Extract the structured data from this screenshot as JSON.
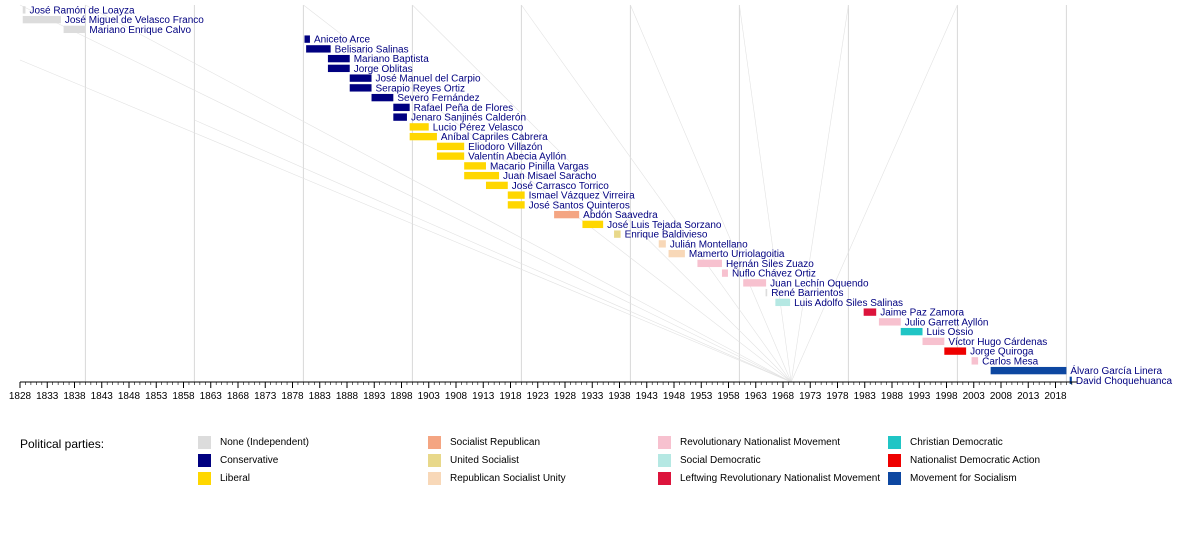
{
  "chart_data": {
    "type": "timeline",
    "x_range": [
      1828,
      2022
    ],
    "x_ticks": [
      1828,
      1833,
      1838,
      1843,
      1848,
      1853,
      1858,
      1863,
      1868,
      1873,
      1878,
      1883,
      1888,
      1893,
      1898,
      1903,
      1908,
      1913,
      1918,
      1923,
      1928,
      1933,
      1938,
      1943,
      1948,
      1953,
      1958,
      1963,
      1968,
      1973,
      1978,
      1983,
      1988,
      1993,
      1998,
      2003,
      2008,
      2013,
      2018
    ],
    "grid_years": [
      1840,
      1860,
      1880,
      1900,
      1920,
      1940,
      1960,
      1980,
      2000,
      2020
    ],
    "grid": true,
    "legend_title": "Political parties:",
    "parties": [
      {
        "key": "none",
        "name": "None (Independent)",
        "color": "#dcdcdc"
      },
      {
        "key": "conservative",
        "name": "Conservative",
        "color": "#000080"
      },
      {
        "key": "liberal",
        "name": "Liberal",
        "color": "#ffd700"
      },
      {
        "key": "socialist_republican",
        "name": "Socialist Republican",
        "color": "#f4a582"
      },
      {
        "key": "united_socialist",
        "name": "United Socialist",
        "color": "#e8d88a"
      },
      {
        "key": "republican_socialist_unity",
        "name": "Republican Socialist Unity",
        "color": "#f8d8b8"
      },
      {
        "key": "mnr",
        "name": "Revolutionary Nationalist Movement",
        "color": "#f7c1cf"
      },
      {
        "key": "social_democratic",
        "name": "Social Democratic",
        "color": "#b5e8e3"
      },
      {
        "key": "left_mnr",
        "name": "Leftwing Revolutionary Nationalist Movement",
        "color": "#dc143c"
      },
      {
        "key": "christian_democratic",
        "name": "Christian Democratic",
        "color": "#20c5c5"
      },
      {
        "key": "adn",
        "name": "Nationalist Democratic Action",
        "color": "#ee0000"
      },
      {
        "key": "mas",
        "name": "Movement for Socialism",
        "color": "#0d47a1"
      }
    ],
    "entries": [
      {
        "name": "José Ramón de Loayza",
        "start": 1828.5,
        "end": 1829.0,
        "party": "none"
      },
      {
        "name": "José Miguel de Velasco Franco",
        "start": 1828.5,
        "end": 1835.5,
        "party": "none"
      },
      {
        "name": "Mariano Enrique Calvo",
        "start": 1836.0,
        "end": 1840.0,
        "party": "none"
      },
      {
        "name": "Aniceto Arce",
        "start": 1880.2,
        "end": 1881.2,
        "party": "conservative"
      },
      {
        "name": "Belisario Salinas",
        "start": 1880.5,
        "end": 1885.0,
        "party": "conservative"
      },
      {
        "name": "Mariano Baptista",
        "start": 1884.5,
        "end": 1888.5,
        "party": "conservative"
      },
      {
        "name": "Jorge Oblitas",
        "start": 1884.5,
        "end": 1888.5,
        "party": "conservative"
      },
      {
        "name": "José Manuel del Carpio",
        "start": 1888.5,
        "end": 1892.5,
        "party": "conservative"
      },
      {
        "name": "Serapio Reyes Ortiz",
        "start": 1888.5,
        "end": 1892.5,
        "party": "conservative"
      },
      {
        "name": "Severo Fernández",
        "start": 1892.5,
        "end": 1896.5,
        "party": "conservative"
      },
      {
        "name": "Rafael Peña de Flores",
        "start": 1896.5,
        "end": 1899.5,
        "party": "conservative"
      },
      {
        "name": "Jenaro Sanjinés Calderón",
        "start": 1896.5,
        "end": 1899.0,
        "party": "conservative"
      },
      {
        "name": "Lucio Pérez Velasco",
        "start": 1899.5,
        "end": 1903.0,
        "party": "liberal"
      },
      {
        "name": "Aníbal Capriles Cabrera",
        "start": 1899.5,
        "end": 1904.5,
        "party": "liberal"
      },
      {
        "name": "Eliodoro Villazón",
        "start": 1904.5,
        "end": 1909.5,
        "party": "liberal"
      },
      {
        "name": "Valentín Abecia Ayllón",
        "start": 1904.5,
        "end": 1909.5,
        "party": "liberal"
      },
      {
        "name": "Macario Pinilla Vargas",
        "start": 1909.5,
        "end": 1913.5,
        "party": "liberal"
      },
      {
        "name": "Juan Misael Saracho",
        "start": 1909.5,
        "end": 1915.9,
        "party": "liberal"
      },
      {
        "name": "José Carrasco Torrico",
        "start": 1913.5,
        "end": 1917.5,
        "party": "liberal"
      },
      {
        "name": "Ismael Vázquez Virreira",
        "start": 1917.5,
        "end": 1920.6,
        "party": "liberal"
      },
      {
        "name": "José Santos Quinteros",
        "start": 1917.5,
        "end": 1920.6,
        "party": "liberal"
      },
      {
        "name": "Abdón Saavedra",
        "start": 1926.0,
        "end": 1930.6,
        "party": "socialist_republican"
      },
      {
        "name": "José Luis Tejada Sorzano",
        "start": 1931.2,
        "end": 1935.0,
        "party": "liberal"
      },
      {
        "name": "Enrique Baldivieso",
        "start": 1937.0,
        "end": 1938.2,
        "party": "united_socialist"
      },
      {
        "name": "Julián Montellano",
        "start": 1945.2,
        "end": 1946.5,
        "party": "republican_socialist_unity"
      },
      {
        "name": "Mamerto Urriolagoitia",
        "start": 1947.0,
        "end": 1950.0,
        "party": "republican_socialist_unity"
      },
      {
        "name": "Hernán Siles Zuazo",
        "start": 1952.3,
        "end": 1956.8,
        "party": "mnr"
      },
      {
        "name": "Ñuflo Chávez Ortiz",
        "start": 1956.8,
        "end": 1957.9,
        "party": "mnr"
      },
      {
        "name": "Juan Lechín Oquendo",
        "start": 1960.7,
        "end": 1964.9,
        "party": "mnr"
      },
      {
        "name": "René Barrientos",
        "start": 1964.8,
        "end": 1965.1,
        "party": "none"
      },
      {
        "name": "Luis Adolfo Siles Salinas",
        "start": 1966.6,
        "end": 1969.3,
        "party": "social_democratic"
      },
      {
        "name": "Jaime Paz Zamora",
        "start": 1982.8,
        "end": 1985.1,
        "party": "left_mnr"
      },
      {
        "name": "Julio Garrett Ayllón",
        "start": 1985.6,
        "end": 1989.6,
        "party": "mnr"
      },
      {
        "name": "Luis Ossio",
        "start": 1989.6,
        "end": 1993.6,
        "party": "christian_democratic"
      },
      {
        "name": "Víctor Hugo Cárdenas",
        "start": 1993.6,
        "end": 1997.6,
        "party": "mnr"
      },
      {
        "name": "Jorge Quiroga",
        "start": 1997.6,
        "end": 2001.6,
        "party": "adn"
      },
      {
        "name": "Carlos Mesa",
        "start": 2002.6,
        "end": 2003.8,
        "party": "mnr"
      },
      {
        "name": "Álvaro García Linera",
        "start": 2006.1,
        "end": 2020.0,
        "party": "mas"
      },
      {
        "name": "David Choquehuanca",
        "start": 2020.6,
        "end": 2021.0,
        "party": "mas"
      }
    ]
  }
}
